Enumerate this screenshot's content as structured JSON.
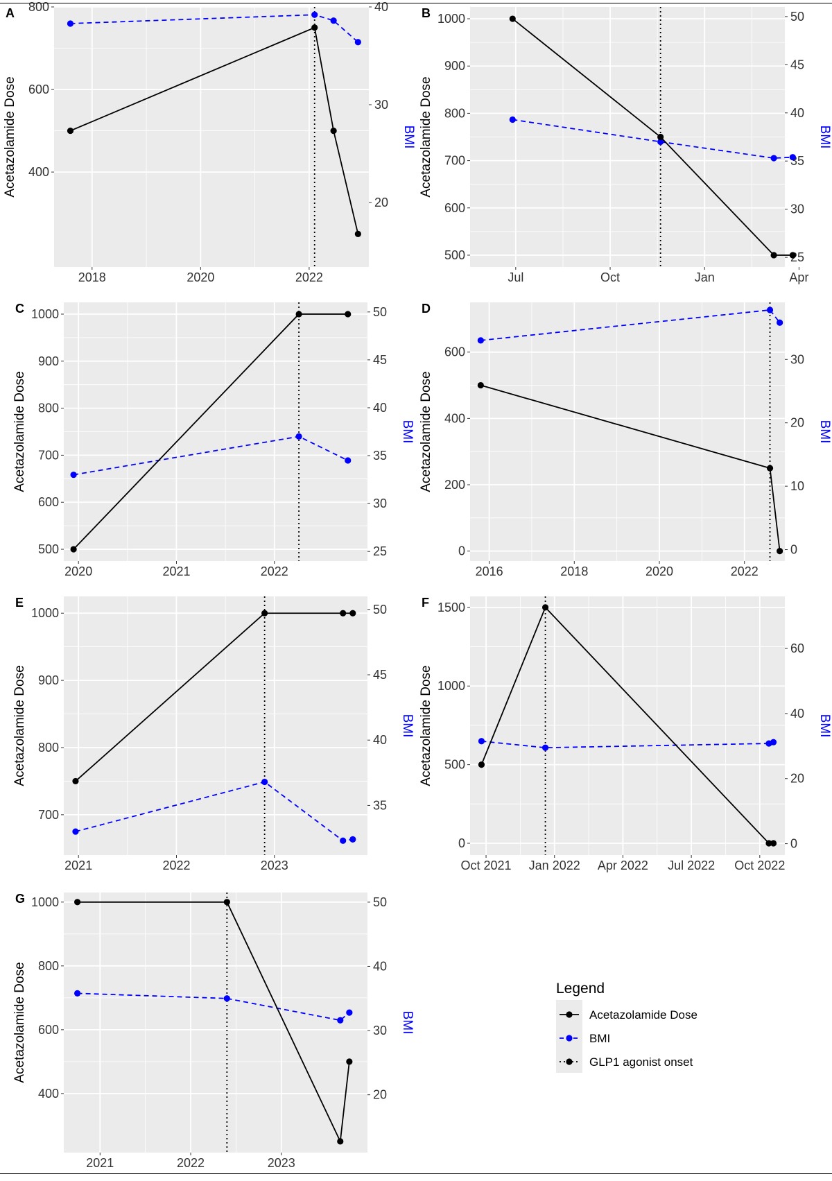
{
  "legend": {
    "title": "Legend",
    "items": [
      {
        "label": "Acetazolamide Dose",
        "color": "#000000",
        "style": "solid"
      },
      {
        "label": "BMI",
        "color": "#0000ff",
        "style": "dashed"
      },
      {
        "label": "GLP1 agonist onset",
        "color": "#000000",
        "style": "dotted"
      }
    ]
  },
  "colors": {
    "panel_bg": "#ebebeb",
    "grid": "#ffffff",
    "dose": "#000000",
    "bmi": "#0000ff"
  },
  "chart_data": [
    {
      "panel": "A",
      "type": "line",
      "ylabel": "Acetazolamide Dose",
      "y2label": "BMI",
      "xlim": [
        2017.3,
        2023.1
      ],
      "xticks": [
        {
          "v": 2018,
          "label": "2018"
        },
        {
          "v": 2020,
          "label": "2020"
        },
        {
          "v": 2022,
          "label": "2022"
        }
      ],
      "ylim": [
        170,
        800
      ],
      "yticks": [
        400,
        600,
        800
      ],
      "y2lim": [
        13.4,
        40
      ],
      "y2ticks": [
        20,
        30,
        40
      ],
      "glp1_onset": 2022.1,
      "dose": {
        "x": [
          2017.6,
          2022.1,
          2022.45,
          2022.9
        ],
        "y": [
          500,
          750,
          500,
          250
        ]
      },
      "bmi": {
        "x": [
          2017.6,
          2022.1,
          2022.45,
          2022.9
        ],
        "y": [
          38.3,
          39.2,
          38.6,
          36.4
        ]
      }
    },
    {
      "panel": "B",
      "type": "line",
      "ylabel": "Acetazolamide Dose",
      "y2label": "BMI",
      "xlim": [
        5.55,
        15.55
      ],
      "xticks": [
        {
          "v": 7,
          "label": "Jul"
        },
        {
          "v": 10,
          "label": "Oct"
        },
        {
          "v": 13,
          "label": "Jan"
        },
        {
          "v": 16,
          "label": "Apr"
        }
      ],
      "ylim": [
        475,
        1025
      ],
      "yticks": [
        500,
        600,
        700,
        800,
        900,
        1000
      ],
      "y2lim": [
        24,
        51
      ],
      "y2ticks": [
        25,
        30,
        35,
        40,
        45,
        50
      ],
      "glp1_onset": 11.6,
      "dose": {
        "x": [
          6.9,
          11.6,
          15.2,
          15.8
        ],
        "y": [
          1000,
          750,
          500,
          500
        ]
      },
      "bmi": {
        "x": [
          6.9,
          11.6,
          15.2,
          15.8
        ],
        "y": [
          39.3,
          37,
          35.3,
          35.4
        ]
      }
    },
    {
      "panel": "C",
      "type": "line",
      "ylabel": "Acetazolamide Dose",
      "y2label": "BMI",
      "xlim": [
        2019.85,
        2022.95
      ],
      "xticks": [
        {
          "v": 2020,
          "label": "2020"
        },
        {
          "v": 2021,
          "label": "2021"
        },
        {
          "v": 2022,
          "label": "2022"
        }
      ],
      "ylim": [
        475,
        1025
      ],
      "yticks": [
        500,
        600,
        700,
        800,
        900,
        1000
      ],
      "y2lim": [
        24,
        51
      ],
      "y2ticks": [
        25,
        30,
        35,
        40,
        45,
        50
      ],
      "glp1_onset": 2022.25,
      "dose": {
        "x": [
          2019.95,
          2022.25,
          2022.75
        ],
        "y": [
          500,
          1000,
          1000
        ]
      },
      "bmi": {
        "x": [
          2019.95,
          2022.25,
          2022.75
        ],
        "y": [
          33,
          37,
          34.5
        ]
      }
    },
    {
      "panel": "D",
      "type": "line",
      "ylabel": "Acetazolamide Dose",
      "y2label": "BMI",
      "xlim": [
        2015.55,
        2022.95
      ],
      "xticks": [
        {
          "v": 2016,
          "label": "2016"
        },
        {
          "v": 2018,
          "label": "2018"
        },
        {
          "v": 2020,
          "label": "2020"
        },
        {
          "v": 2022,
          "label": "2022"
        }
      ],
      "ylim": [
        -30,
        750
      ],
      "yticks": [
        0,
        200,
        400,
        600
      ],
      "y2lim": [
        -1.8,
        39
      ],
      "y2ticks": [
        0,
        10,
        20,
        30
      ],
      "glp1_onset": 2022.6,
      "dose": {
        "x": [
          2015.8,
          2022.6,
          2022.83
        ],
        "y": [
          500,
          250,
          0
        ]
      },
      "bmi": {
        "x": [
          2015.8,
          2022.6,
          2022.83
        ],
        "y": [
          33,
          37.8,
          35.8
        ]
      }
    },
    {
      "panel": "E",
      "type": "line",
      "ylabel": "Acetazolamide Dose",
      "y2label": "BMI",
      "xlim": [
        2020.85,
        2023.95
      ],
      "xticks": [
        {
          "v": 2021,
          "label": "2021"
        },
        {
          "v": 2022,
          "label": "2022"
        },
        {
          "v": 2023,
          "label": "2023"
        }
      ],
      "ylim": [
        640,
        1025
      ],
      "yticks": [
        700,
        800,
        900,
        1000
      ],
      "y2lim": [
        31.2,
        51
      ],
      "y2ticks": [
        35,
        40,
        45,
        50
      ],
      "glp1_onset": 2022.9,
      "dose": {
        "x": [
          2020.97,
          2022.9,
          2023.7,
          2023.8
        ],
        "y": [
          750,
          1000,
          1000,
          1000
        ]
      },
      "bmi": {
        "x": [
          2020.97,
          2022.9,
          2023.7,
          2023.8
        ],
        "y": [
          33,
          36.8,
          32.3,
          32.4
        ]
      }
    },
    {
      "panel": "F",
      "type": "line",
      "ylabel": "Acetazolamide Dose",
      "y2label": "BMI",
      "xlim": [
        9.3,
        23.1
      ],
      "xticks": [
        {
          "v": 10,
          "label": "Oct 2021"
        },
        {
          "v": 13,
          "label": "Jan 2022"
        },
        {
          "v": 16,
          "label": "Apr 2022"
        },
        {
          "v": 19,
          "label": "Jul 2022"
        },
        {
          "v": 22,
          "label": "Oct 2022"
        }
      ],
      "ylim": [
        -75,
        1570
      ],
      "yticks": [
        0,
        500,
        1000,
        1500
      ],
      "y2lim": [
        -3.5,
        76
      ],
      "y2ticks": [
        0,
        20,
        40,
        60
      ],
      "glp1_onset": 12.6,
      "dose": {
        "x": [
          9.8,
          12.6,
          22.4,
          22.6
        ],
        "y": [
          500,
          1500,
          0,
          0
        ]
      },
      "bmi": {
        "x": [
          9.8,
          12.6,
          22.4,
          22.6
        ],
        "y": [
          31.5,
          29.5,
          30.8,
          31.2
        ]
      }
    },
    {
      "panel": "G",
      "type": "line",
      "ylabel": "Acetazolamide Dose",
      "y2label": "BMI",
      "xlim": [
        2020.6,
        2023.95
      ],
      "xticks": [
        {
          "v": 2021,
          "label": "2021"
        },
        {
          "v": 2022,
          "label": "2022"
        },
        {
          "v": 2023,
          "label": "2023"
        }
      ],
      "ylim": [
        215,
        1030
      ],
      "yticks": [
        400,
        600,
        800,
        1000
      ],
      "y2lim": [
        11,
        51.5
      ],
      "y2ticks": [
        20,
        30,
        40,
        50
      ],
      "glp1_onset": 2022.4,
      "dose": {
        "x": [
          2020.75,
          2022.4,
          2023.65,
          2023.75
        ],
        "y": [
          1000,
          1000,
          250,
          500
        ]
      },
      "bmi": {
        "x": [
          2020.75,
          2022.4,
          2023.65,
          2023.75
        ],
        "y": [
          35.8,
          35,
          31.6,
          32.8
        ]
      }
    }
  ]
}
